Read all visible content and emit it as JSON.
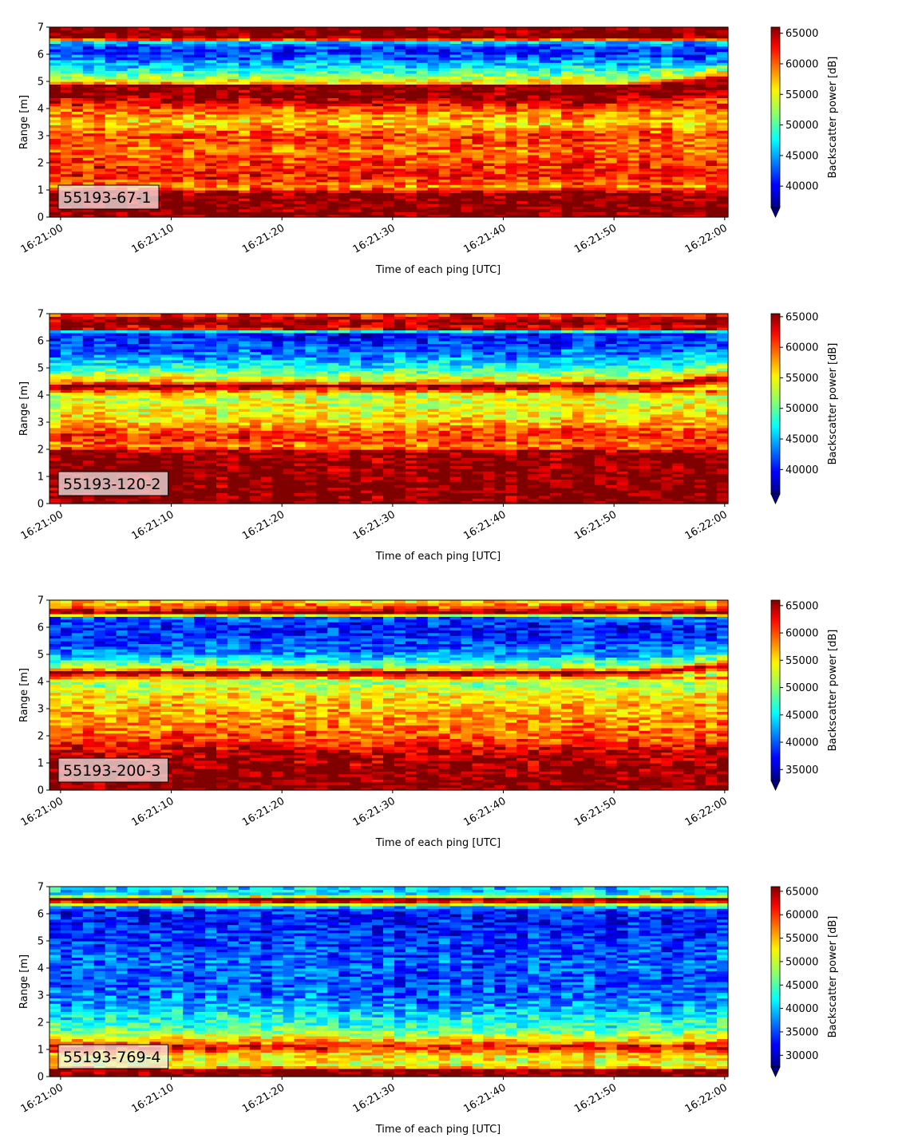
{
  "chart_data": [
    {
      "type": "heatmap",
      "label": "55193-67-1",
      "xlabel": "Time of each ping [UTC]",
      "ylabel": "Range [m]",
      "xticks": [
        "16:21:00",
        "16:21:10",
        "16:21:20",
        "16:21:30",
        "16:21:40",
        "16:21:50",
        "16:22:00"
      ],
      "x_start_s": 0,
      "x_end_s": 60,
      "ylim": [
        0,
        7
      ],
      "yticks": [
        "0",
        "1",
        "2",
        "3",
        "4",
        "5",
        "6",
        "7"
      ],
      "colorbar": {
        "label": "Backscatter power [dB]",
        "min": 36500,
        "max": 66000,
        "ticks": [
          "40000",
          "45000",
          "50000",
          "55000",
          "60000",
          "65000"
        ]
      },
      "colormap": "jet",
      "profile": [
        {
          "range": 0.2,
          "value": 66000
        },
        {
          "range": 0.5,
          "value": 66000
        },
        {
          "range": 0.9,
          "value": 65500
        },
        {
          "range": 1.1,
          "value": 58000
        },
        {
          "range": 1.5,
          "value": 62000
        },
        {
          "range": 2.0,
          "value": 61000
        },
        {
          "range": 2.5,
          "value": 59000
        },
        {
          "range": 3.0,
          "value": 61000
        },
        {
          "range": 3.5,
          "value": 56000
        },
        {
          "range": 4.0,
          "value": 60000
        },
        {
          "range": 4.5,
          "value": 66000
        },
        {
          "range": 4.85,
          "value": 66000
        },
        {
          "range": 4.95,
          "value": 57000
        },
        {
          "range": 5.3,
          "value": 50000
        },
        {
          "range": 5.8,
          "value": 44000
        },
        {
          "range": 6.2,
          "value": 41000
        },
        {
          "range": 6.45,
          "value": 46000
        },
        {
          "range": 6.6,
          "value": 66000
        },
        {
          "range": 7.0,
          "value": 66000
        }
      ],
      "annotation": "bottom band 0.25–1.0 m saturated; surface band 4.3–4.9 m rising to ~5.2 m after 16:21:52"
    },
    {
      "type": "heatmap",
      "label": "55193-120-2",
      "xlabel": "Time of each ping [UTC]",
      "ylabel": "Range [m]",
      "xticks": [
        "16:21:00",
        "16:21:10",
        "16:21:20",
        "16:21:30",
        "16:21:40",
        "16:21:50",
        "16:22:00"
      ],
      "x_start_s": 0,
      "x_end_s": 60,
      "ylim": [
        0,
        7
      ],
      "yticks": [
        "0",
        "1",
        "2",
        "3",
        "4",
        "5",
        "6",
        "7"
      ],
      "colorbar": {
        "label": "Backscatter power [dB]",
        "min": 36000,
        "max": 65500,
        "ticks": [
          "40000",
          "45000",
          "50000",
          "55000",
          "60000",
          "65000"
        ]
      },
      "colormap": "jet",
      "profile": [
        {
          "range": 0.1,
          "value": 65500
        },
        {
          "range": 1.0,
          "value": 65500
        },
        {
          "range": 1.9,
          "value": 65000
        },
        {
          "range": 2.1,
          "value": 58000
        },
        {
          "range": 2.5,
          "value": 61000
        },
        {
          "range": 3.0,
          "value": 56000
        },
        {
          "range": 3.5,
          "value": 54000
        },
        {
          "range": 4.0,
          "value": 53000
        },
        {
          "range": 4.35,
          "value": 65500
        },
        {
          "range": 4.5,
          "value": 56000
        },
        {
          "range": 5.0,
          "value": 48000
        },
        {
          "range": 5.5,
          "value": 43000
        },
        {
          "range": 6.0,
          "value": 41000
        },
        {
          "range": 6.3,
          "value": 40000
        },
        {
          "range": 6.45,
          "value": 62000
        },
        {
          "range": 6.7,
          "value": 65500
        },
        {
          "range": 7.0,
          "value": 60000
        }
      ],
      "annotation": "bottom band 0–1.9 m saturated; surface band ~4.35 m rising to ~4.7 m after 16:21:52"
    },
    {
      "type": "heatmap",
      "label": "55193-200-3",
      "xlabel": "Time of each ping [UTC]",
      "ylabel": "Range [m]",
      "xticks": [
        "16:21:00",
        "16:21:10",
        "16:21:20",
        "16:21:30",
        "16:21:40",
        "16:21:50",
        "16:22:00"
      ],
      "x_start_s": 0,
      "x_end_s": 60,
      "ylim": [
        0,
        7
      ],
      "yticks": [
        "0",
        "1",
        "2",
        "3",
        "4",
        "5",
        "6",
        "7"
      ],
      "colorbar": {
        "label": "Backscatter power [dB]",
        "min": 33000,
        "max": 66000,
        "ticks": [
          "35000",
          "40000",
          "45000",
          "50000",
          "55000",
          "60000",
          "65000"
        ]
      },
      "colormap": "jet",
      "profile": [
        {
          "range": 0.1,
          "value": 66000
        },
        {
          "range": 0.8,
          "value": 65500
        },
        {
          "range": 1.4,
          "value": 64000
        },
        {
          "range": 1.8,
          "value": 60000
        },
        {
          "range": 2.3,
          "value": 58000
        },
        {
          "range": 3.0,
          "value": 56000
        },
        {
          "range": 3.5,
          "value": 54000
        },
        {
          "range": 4.0,
          "value": 50000
        },
        {
          "range": 4.35,
          "value": 66000
        },
        {
          "range": 4.5,
          "value": 52000
        },
        {
          "range": 5.0,
          "value": 42000
        },
        {
          "range": 5.5,
          "value": 39000
        },
        {
          "range": 6.0,
          "value": 38000
        },
        {
          "range": 6.35,
          "value": 40000
        },
        {
          "range": 6.55,
          "value": 66000
        },
        {
          "range": 6.8,
          "value": 58000
        },
        {
          "range": 7.0,
          "value": 54000
        }
      ],
      "annotation": "bottom band 0–1.4 m saturated; surface band ~4.35 m rising to ~4.7 m after 16:21:52"
    },
    {
      "type": "heatmap",
      "label": "55193-769-4",
      "xlabel": "Time of each ping [UTC]",
      "ylabel": "Range [m]",
      "xticks": [
        "16:21:00",
        "16:21:10",
        "16:21:20",
        "16:21:30",
        "16:21:40",
        "16:21:50",
        "16:22:00"
      ],
      "x_start_s": 0,
      "x_end_s": 60,
      "ylim": [
        0,
        7
      ],
      "yticks": [
        "0",
        "1",
        "2",
        "3",
        "4",
        "5",
        "6",
        "7"
      ],
      "colorbar": {
        "label": "Backscatter power [dB]",
        "min": 27500,
        "max": 66000,
        "ticks": [
          "30000",
          "35000",
          "40000",
          "45000",
          "50000",
          "55000",
          "60000",
          "65000"
        ]
      },
      "colormap": "jet",
      "profile": [
        {
          "range": 0.1,
          "value": 66000
        },
        {
          "range": 0.25,
          "value": 66000
        },
        {
          "range": 0.4,
          "value": 50000
        },
        {
          "range": 0.8,
          "value": 52000
        },
        {
          "range": 1.1,
          "value": 62000
        },
        {
          "range": 1.4,
          "value": 52000
        },
        {
          "range": 1.8,
          "value": 44000
        },
        {
          "range": 2.2,
          "value": 42000
        },
        {
          "range": 2.8,
          "value": 37000
        },
        {
          "range": 3.5,
          "value": 35000
        },
        {
          "range": 4.2,
          "value": 36000
        },
        {
          "range": 5.0,
          "value": 34000
        },
        {
          "range": 5.8,
          "value": 33000
        },
        {
          "range": 6.2,
          "value": 34000
        },
        {
          "range": 6.45,
          "value": 62000
        },
        {
          "range": 6.55,
          "value": 66000
        },
        {
          "range": 6.7,
          "value": 42000
        },
        {
          "range": 7.0,
          "value": 40000
        }
      ],
      "annotation": "weak overall returns; narrow strong bands at ~0.25 m and ~6.5 m; faint surface ~4.5 m after 16:21:52"
    }
  ]
}
